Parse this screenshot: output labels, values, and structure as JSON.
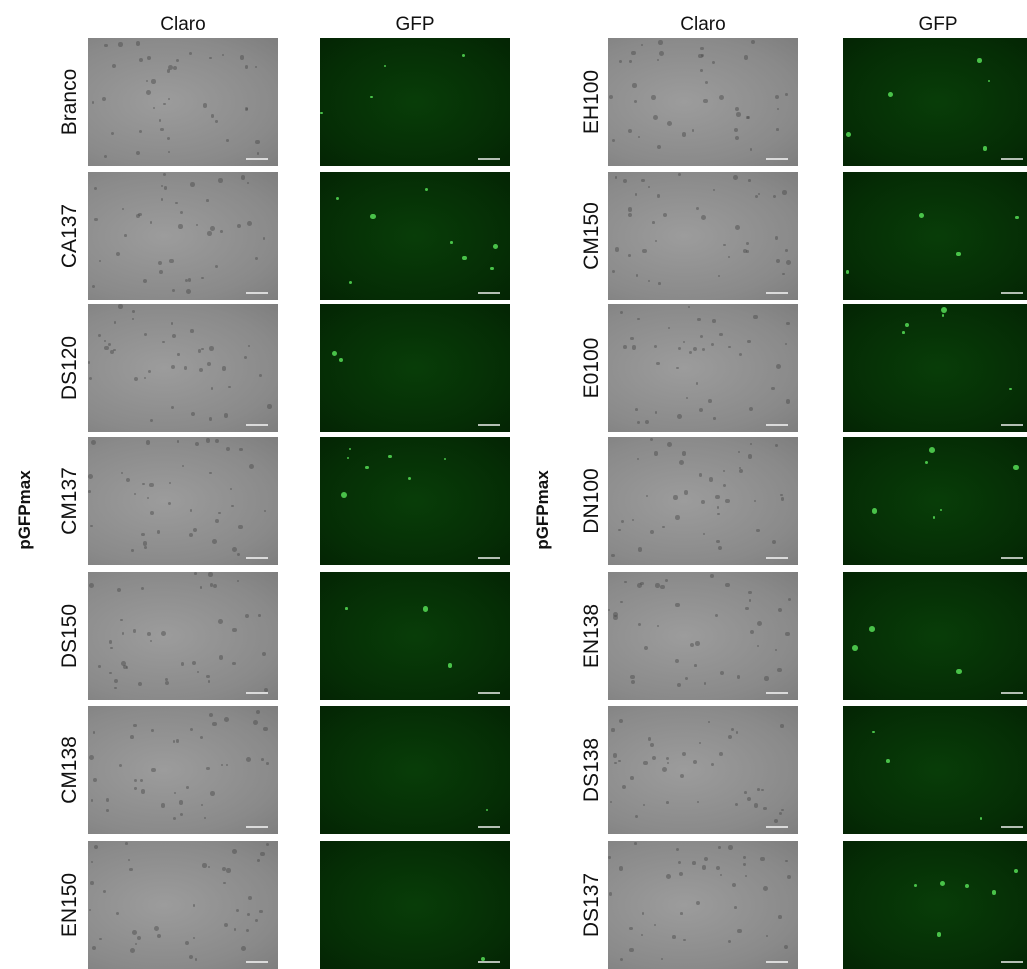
{
  "panels": [
    {
      "side_label": "pGFPmax",
      "column_headers": [
        "Claro",
        "GFP"
      ],
      "rows": [
        "Branco",
        "CA137",
        "DS120",
        "CM137",
        "DS150",
        "CM138",
        "EN150"
      ]
    },
    {
      "side_label": "pGFPmax",
      "column_headers": [
        "Claro",
        "GFP"
      ],
      "rows": [
        "EH100",
        "CM150",
        "E0100",
        "DN100",
        "EN138",
        "DS138",
        "DS137"
      ]
    }
  ]
}
